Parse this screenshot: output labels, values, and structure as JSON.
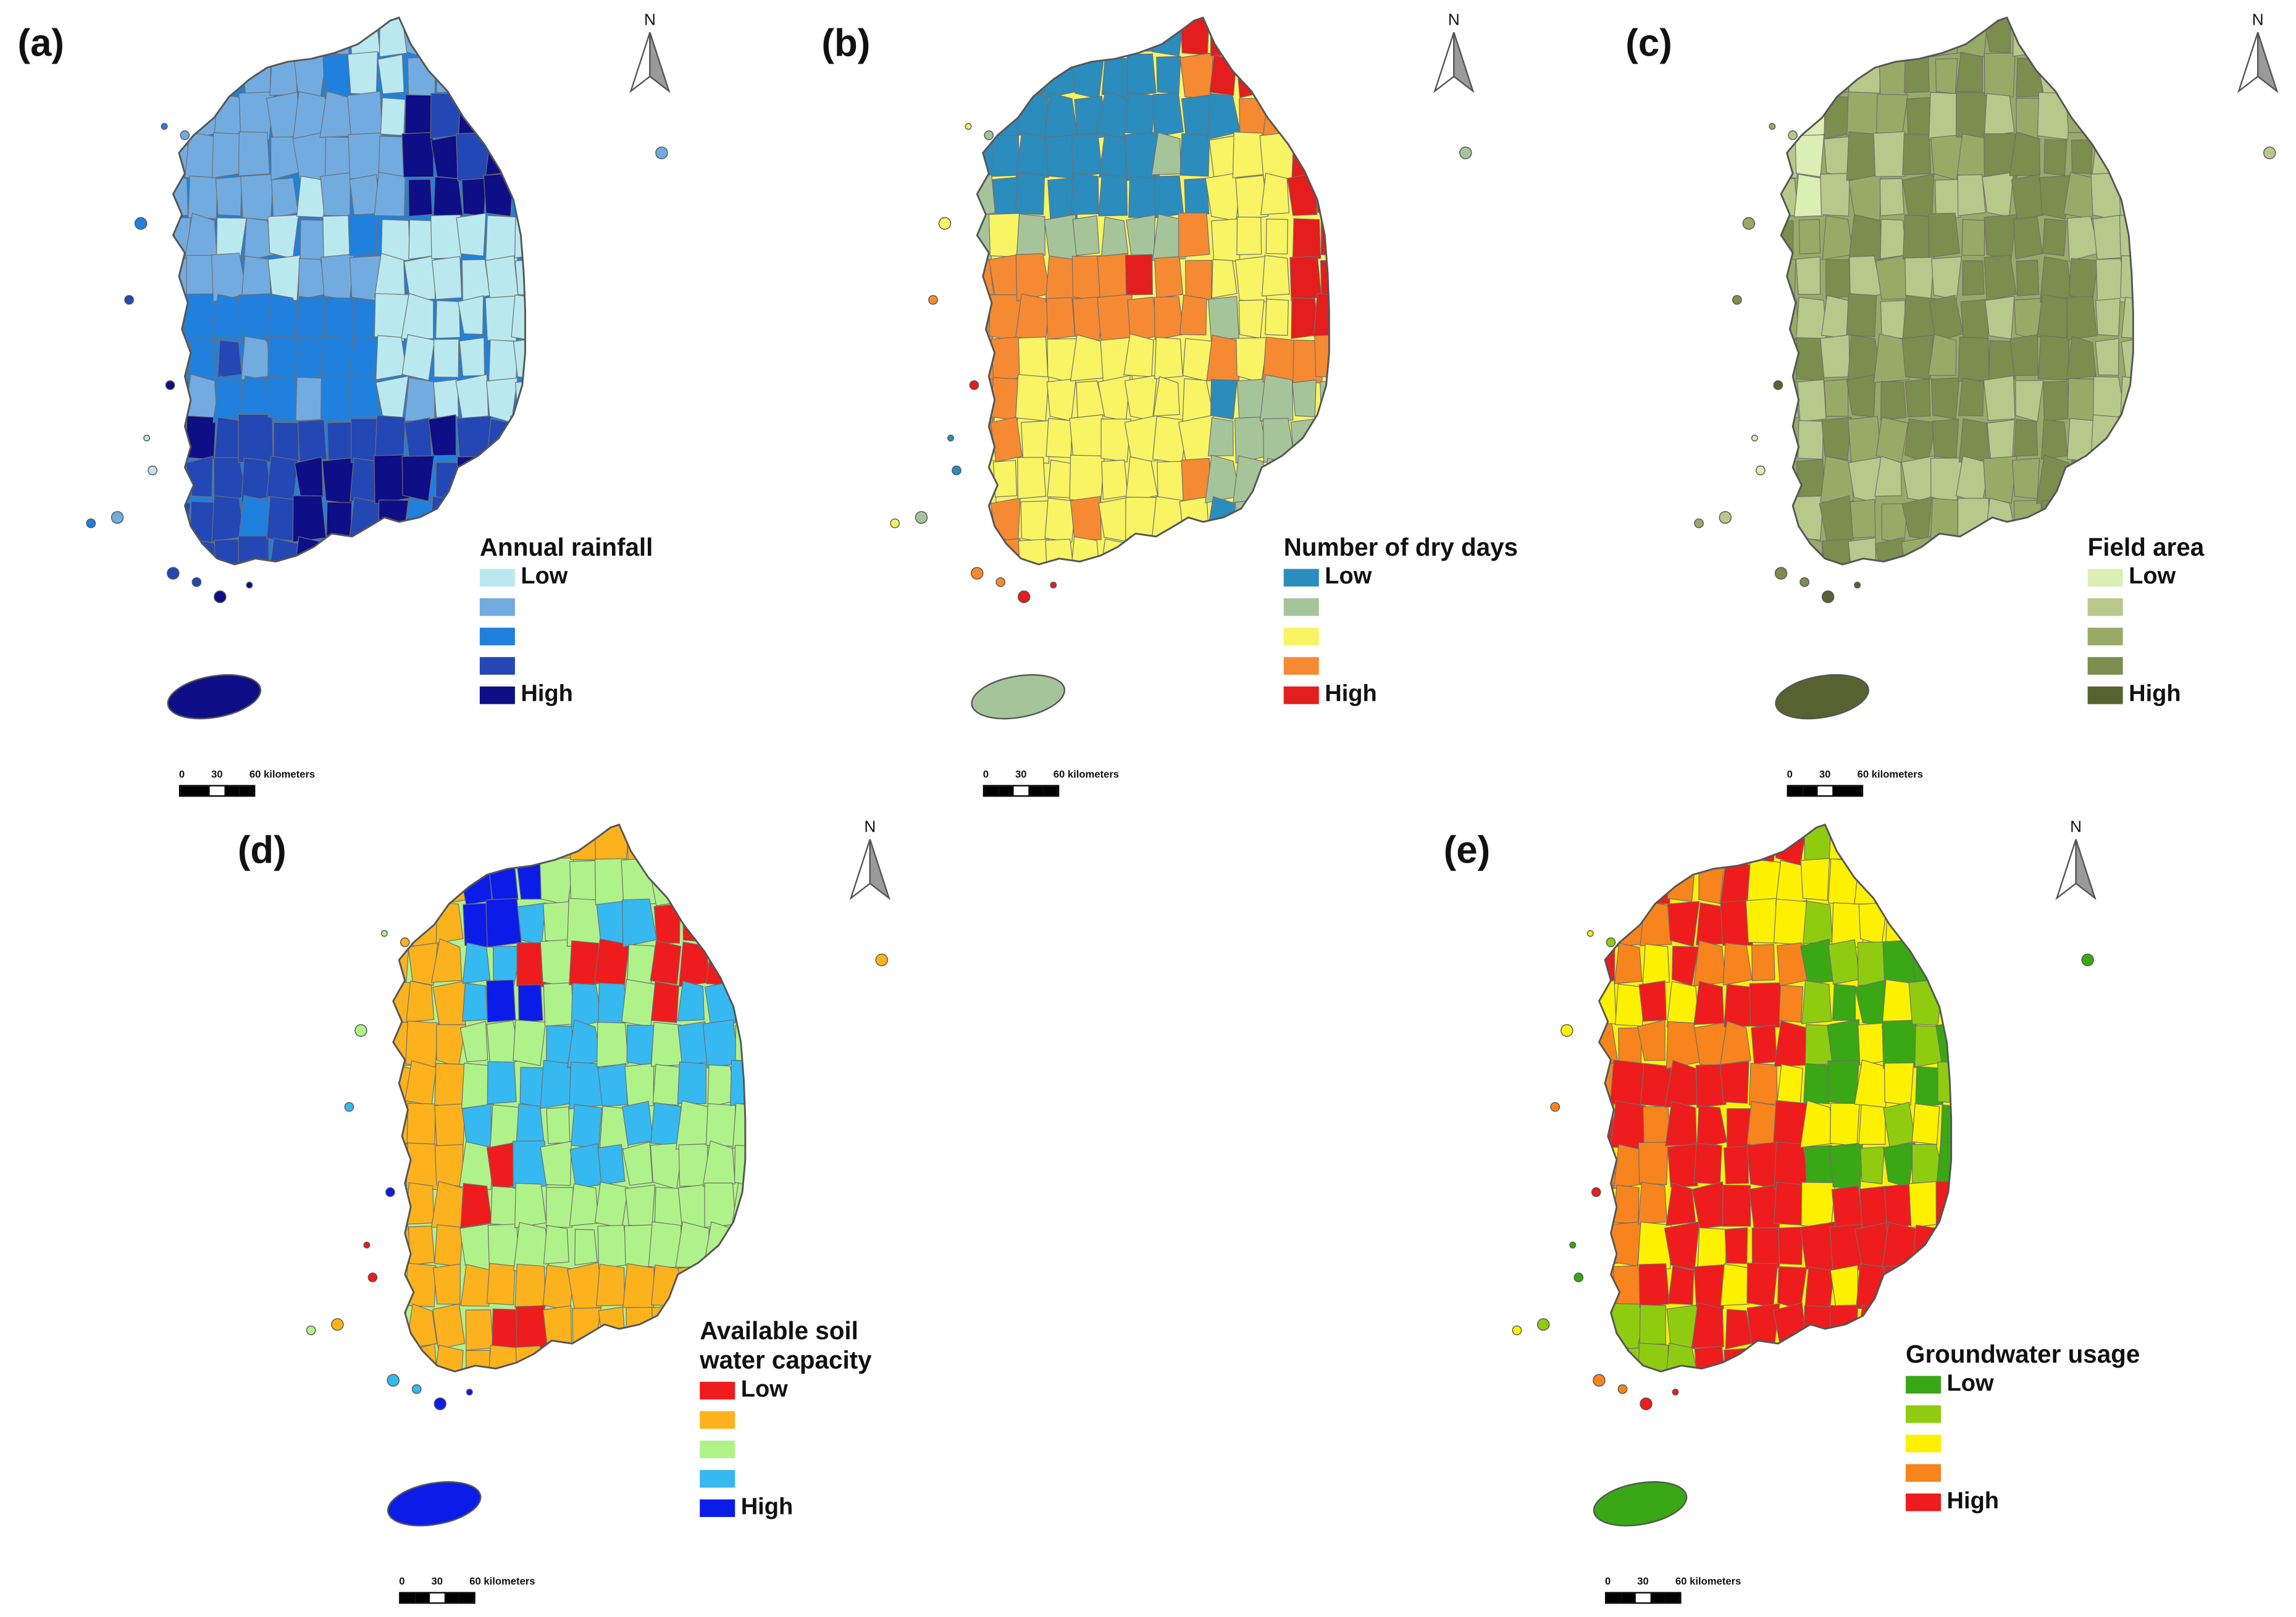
{
  "north_label": "N",
  "scale": {
    "zero": "0",
    "mid": "30",
    "end": "60 kilometers"
  },
  "legend_levels": {
    "low": "Low",
    "high": "High"
  },
  "panels": [
    {
      "id": "a",
      "label": "(a)",
      "legend_title": "Annual rainfall",
      "colors": [
        "#b9e9ef",
        "#72abe0",
        "#2080de",
        "#2347b4",
        "#0e0e86"
      ],
      "jeju_level": 4
    },
    {
      "id": "b",
      "label": "(b)",
      "legend_title": "Number of dry days",
      "colors": [
        "#2b8cbe",
        "#a6c49a",
        "#f8f464",
        "#f58a33",
        "#e41d1d"
      ],
      "jeju_level": 1
    },
    {
      "id": "c",
      "label": "(c)",
      "legend_title": "Field area",
      "colors": [
        "#dbeeb3",
        "#b6c98a",
        "#97ab67",
        "#7b8e4e",
        "#566330"
      ],
      "jeju_level": 4
    },
    {
      "id": "d",
      "label": "(d)",
      "legend_title_lines": [
        "Available soil",
        "water capacity"
      ],
      "colors": [
        "#ee1c1c",
        "#fbb21d",
        "#b0f28a",
        "#36b8f0",
        "#0c1ce8"
      ],
      "jeju_level": 4
    },
    {
      "id": "e",
      "label": "(e)",
      "legend_title": "Groundwater usage",
      "colors": [
        "#3aa714",
        "#8fcc10",
        "#fdf100",
        "#f7841d",
        "#ee1c1c"
      ],
      "jeju_level": 0
    }
  ]
}
